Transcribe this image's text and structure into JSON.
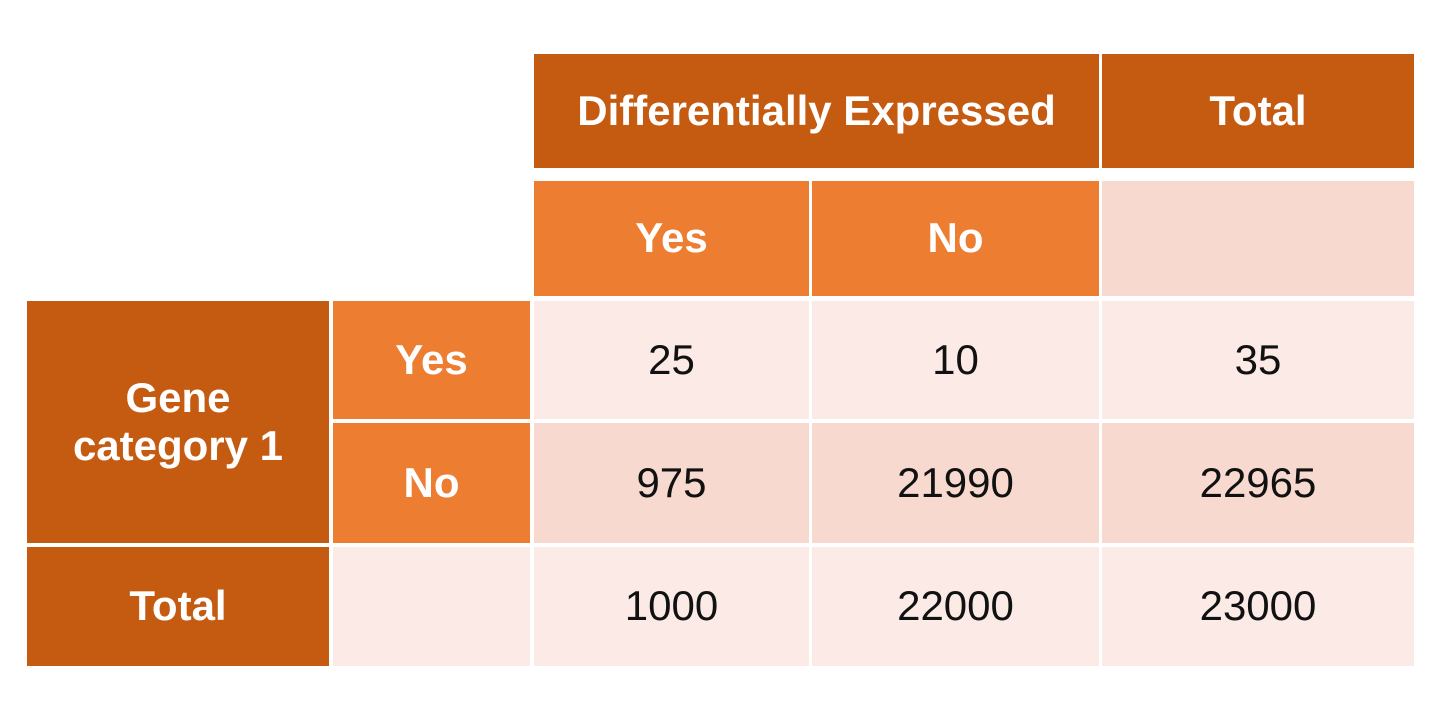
{
  "header": {
    "group_label": "Differentially Expressed",
    "total_label": "Total",
    "sub_yes": "Yes",
    "sub_no": "No"
  },
  "rows": {
    "group_label": "Gene category 1",
    "yes_label": "Yes",
    "no_label": "No",
    "total_label": "Total"
  },
  "values": {
    "yes_yes": "25",
    "yes_no": "10",
    "yes_total": "35",
    "no_yes": "975",
    "no_no": "21990",
    "no_total": "22965",
    "total_yes": "1000",
    "total_no": "22000",
    "total_total": "23000"
  },
  "colors": {
    "dark_orange": "#c55a11",
    "orange": "#ed7d31",
    "light_pink": "#fbeae6",
    "pink": "#f8d9cf"
  }
}
